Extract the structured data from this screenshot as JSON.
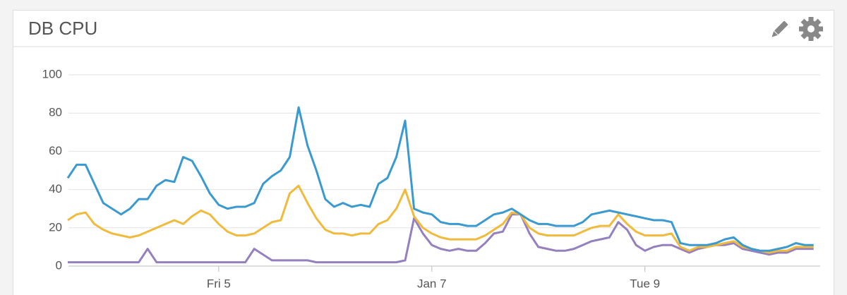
{
  "chart_data": {
    "type": "line",
    "title": "DB CPU",
    "categories": [
      null,
      null,
      null,
      null,
      null,
      null,
      null,
      null,
      null,
      null,
      null,
      null,
      null,
      null,
      null,
      null,
      null,
      "Fri 5",
      null,
      null,
      null,
      null,
      null,
      null,
      null,
      null,
      null,
      null,
      null,
      null,
      null,
      null,
      null,
      null,
      null,
      null,
      null,
      null,
      null,
      null,
      null,
      "Jan 7",
      null,
      null,
      null,
      null,
      null,
      null,
      null,
      null,
      null,
      null,
      null,
      null,
      null,
      null,
      null,
      null,
      null,
      null,
      null,
      null,
      null,
      null,
      null,
      "Tue 9",
      null,
      null,
      null,
      null,
      null,
      null,
      null,
      null,
      null,
      null,
      null,
      null,
      null,
      null,
      null,
      null,
      null,
      null,
      null
    ],
    "series": [
      {
        "color": "#3a9ad0",
        "values": [
          46,
          53,
          53,
          43,
          33,
          30,
          27,
          30,
          35,
          35,
          42,
          45,
          44,
          57,
          55,
          47,
          38,
          32,
          30,
          31,
          31,
          33,
          43,
          47,
          50,
          57,
          83,
          63,
          50,
          35,
          31,
          33,
          31,
          32,
          31,
          43,
          46,
          57,
          76,
          30,
          28,
          27,
          23,
          22,
          22,
          21,
          21,
          24,
          27,
          28,
          30,
          27,
          24,
          22,
          22,
          21,
          21,
          21,
          23,
          27,
          28,
          29,
          28,
          27,
          26,
          25,
          24,
          24,
          23,
          12,
          11,
          11,
          11,
          12,
          14,
          15,
          11,
          9,
          8,
          8,
          9,
          10,
          12,
          11,
          11
        ]
      },
      {
        "color": "#f0bb3c",
        "values": [
          24,
          27,
          28,
          22,
          19,
          17,
          16,
          15,
          16,
          18,
          20,
          22,
          24,
          22,
          26,
          29,
          27,
          22,
          18,
          16,
          16,
          17,
          20,
          23,
          24,
          38,
          42,
          33,
          25,
          19,
          17,
          17,
          16,
          17,
          17,
          22,
          24,
          30,
          40,
          26,
          20,
          17,
          15,
          14,
          14,
          14,
          14,
          16,
          19,
          22,
          28,
          27,
          20,
          17,
          16,
          16,
          16,
          16,
          18,
          20,
          21,
          21,
          27,
          22,
          18,
          16,
          16,
          16,
          17,
          10,
          8,
          10,
          10,
          11,
          12,
          13,
          10,
          9,
          8,
          7,
          8,
          8,
          10,
          10,
          10
        ]
      },
      {
        "color": "#9580bf",
        "values": [
          2,
          2,
          2,
          2,
          2,
          2,
          2,
          2,
          2,
          9,
          2,
          2,
          2,
          2,
          2,
          2,
          2,
          2,
          2,
          2,
          2,
          9,
          6,
          3,
          3,
          3,
          3,
          3,
          2,
          2,
          2,
          2,
          2,
          2,
          2,
          2,
          2,
          2,
          3,
          25,
          17,
          11,
          9,
          8,
          9,
          8,
          8,
          12,
          17,
          18,
          27,
          27,
          17,
          10,
          9,
          8,
          8,
          9,
          11,
          13,
          14,
          15,
          23,
          19,
          11,
          8,
          10,
          11,
          11,
          9,
          7,
          9,
          10,
          11,
          11,
          12,
          9,
          8,
          7,
          6,
          7,
          7,
          9,
          9,
          9
        ]
      }
    ],
    "ylim": [
      0,
      100
    ],
    "yticks": [
      0,
      20,
      40,
      60,
      80,
      100
    ],
    "grid": true
  }
}
